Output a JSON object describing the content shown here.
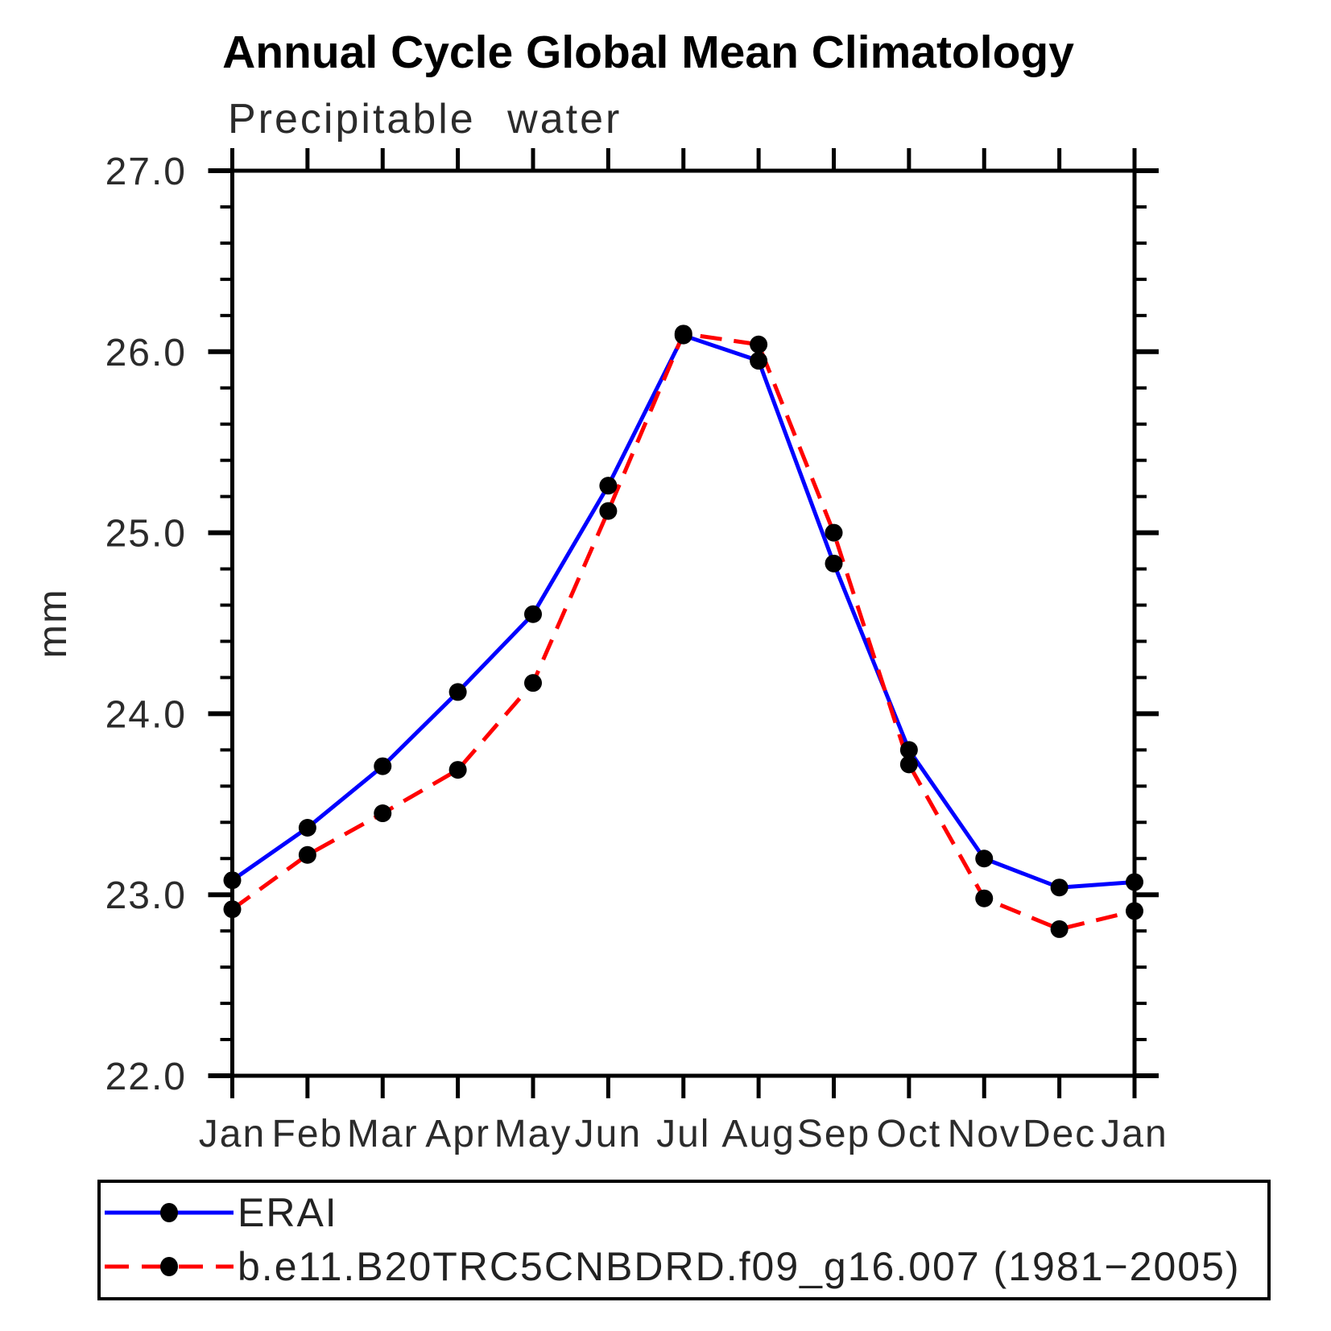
{
  "page": {
    "background": "#ffffff"
  },
  "header": {
    "title": "Annual Cycle Global Mean Climatology",
    "subtitle": "Precipitable water"
  },
  "chart_data": {
    "type": "line",
    "title": "Annual Cycle Global Mean Climatology",
    "subtitle": "Precipitable water",
    "xlabel": "",
    "ylabel": "mm",
    "categories": [
      "Jan",
      "Feb",
      "Mar",
      "Apr",
      "May",
      "Jun",
      "Jul",
      "Aug",
      "Sep",
      "Oct",
      "Nov",
      "Dec",
      "Jan"
    ],
    "ylim": [
      22.0,
      27.0
    ],
    "y_major_step": 1.0,
    "y_minor_step": 0.2,
    "y_tick_labels": [
      "22.0",
      "23.0",
      "24.0",
      "25.0",
      "26.0",
      "27.0"
    ],
    "grid": "off",
    "legend_position": "bottom-box",
    "axis_color": "#000000",
    "tick_label_color": "#2b2b2b",
    "marker_color": "#000000",
    "series": [
      {
        "name": "ERAI",
        "color": "#0000ff",
        "style": "solid",
        "marker": "filled-circle",
        "values": [
          23.08,
          23.37,
          23.71,
          24.12,
          24.55,
          25.26,
          26.09,
          25.95,
          24.83,
          23.8,
          23.2,
          23.04,
          23.07
        ]
      },
      {
        "name": "b.e11.B20TRC5CNBDRD.f09_g16.007 (1981−2005)",
        "color": "#ff0000",
        "style": "dashed",
        "marker": "filled-circle",
        "values": [
          22.92,
          23.22,
          23.45,
          23.69,
          24.17,
          25.12,
          26.1,
          26.04,
          25.0,
          23.72,
          22.98,
          22.81,
          22.91
        ]
      }
    ]
  }
}
